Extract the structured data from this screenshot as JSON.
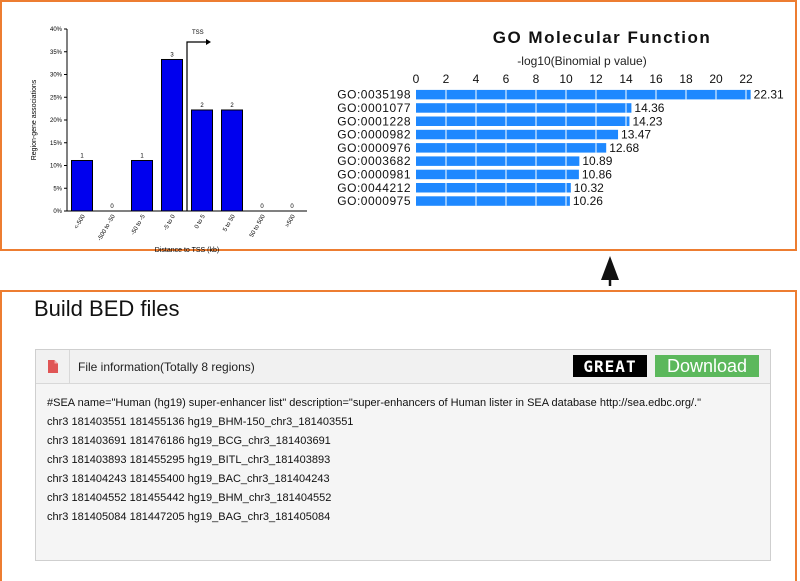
{
  "tss_chart": {
    "chart_data": {
      "type": "bar",
      "title": "",
      "xlabel": "Distance to TSS (kb)",
      "ylabel": "Region-gene associations",
      "ylim": [
        0,
        40
      ],
      "yticks": [
        "0%",
        "5%",
        "10%",
        "15%",
        "20%",
        "25%",
        "30%",
        "35%",
        "40%"
      ],
      "categories": [
        "<-500",
        "-500 to -50",
        "-50 to -5",
        "-5 to 0",
        "0 to 5",
        "5 to 50",
        "50 to 500",
        ">500"
      ],
      "values": [
        11.1,
        0,
        11.1,
        33.3,
        22.2,
        22.2,
        0,
        0
      ],
      "counts": [
        "1",
        "0",
        "1",
        "3",
        "2",
        "2",
        "0",
        "0"
      ],
      "annotation": "TSS",
      "bar_color": "#0000ee"
    }
  },
  "go_chart": {
    "title": "GO Molecular Function",
    "subtitle": "-log10(Binomial p value)",
    "chart_data": {
      "type": "bar",
      "orientation": "horizontal",
      "xlim": [
        0,
        22
      ],
      "xticks": [
        "0",
        "2",
        "4",
        "6",
        "8",
        "10",
        "12",
        "14",
        "16",
        "18",
        "20",
        "22"
      ],
      "categories": [
        "GO:0035198",
        "GO:0001077",
        "GO:0001228",
        "GO:0000982",
        "GO:0000976",
        "GO:0003682",
        "GO:0000981",
        "GO:0044212",
        "GO:0000975"
      ],
      "values": [
        22.31,
        14.36,
        14.23,
        13.47,
        12.68,
        10.89,
        10.86,
        10.32,
        10.26
      ],
      "value_labels": [
        "22.31",
        "14.36",
        "14.23",
        "13.47",
        "12.68",
        "10.89",
        "10.86",
        "10.32",
        "10.26"
      ],
      "bar_color": "#1e88ff"
    }
  },
  "build": {
    "title": "Build BED files",
    "file_info": "File information(Totally 8 regions)",
    "great_label": "GREAT",
    "download_label": "Download",
    "lines": [
      "#SEA name=\"Human (hg19) super-enhancer list\" description=\"super-enhancers of Human lister in SEA database http://sea.edbc.org/.\"",
      "chr3 181403551 181455136 hg19_BHM-150_chr3_181403551",
      "chr3 181403691 181476186 hg19_BCG_chr3_181403691",
      "chr3 181403893 181455295 hg19_BITL_chr3_181403893",
      "chr3 181404243 181455400 hg19_BAC_chr3_181404243",
      "chr3 181404552 181455442 hg19_BHM_chr3_181404552",
      "chr3 181405084 181447205 hg19_BAG_chr3_181405084"
    ]
  },
  "colors": {
    "panel_border": "#ed7d31",
    "download_bg": "#5cb85c"
  }
}
